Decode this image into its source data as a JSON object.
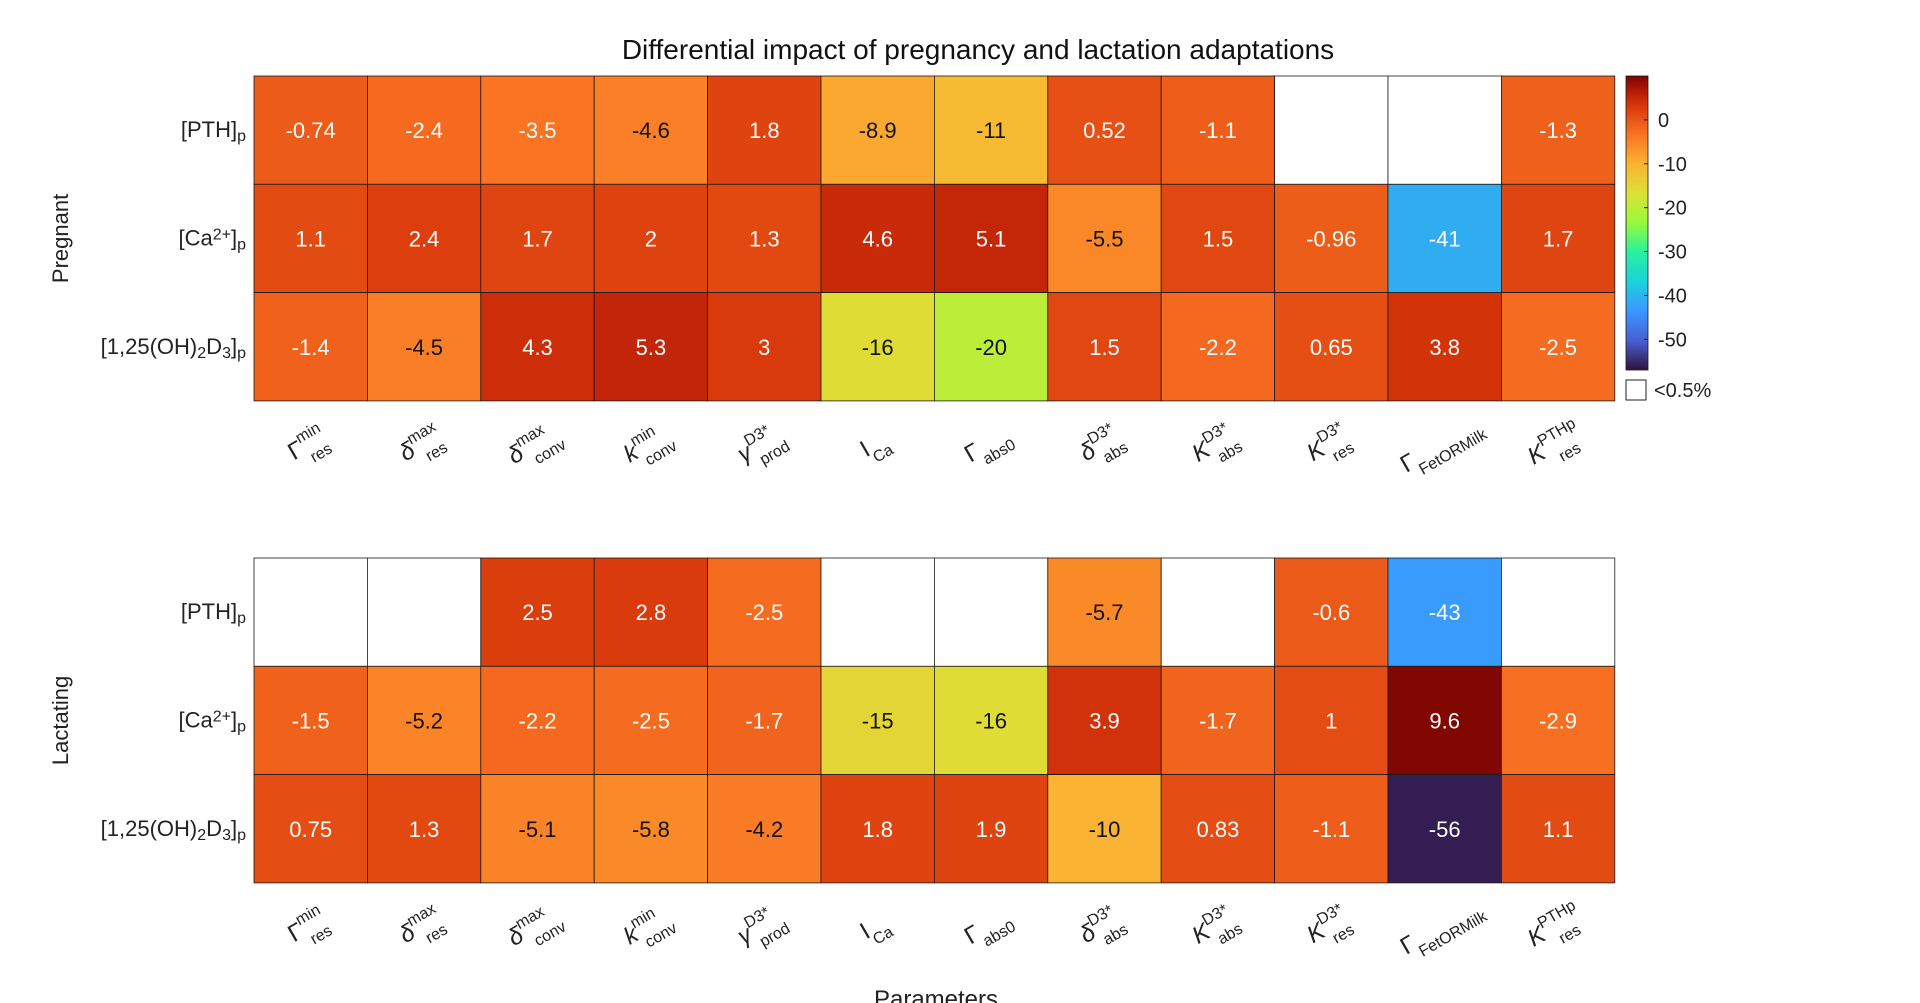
{
  "title": "Differential impact of pregnancy and lactation adaptations",
  "xlabel": "Parameters",
  "legend_note": "<0.5%",
  "chart_data": {
    "type": "heatmap",
    "title": "Differential impact of pregnancy and lactation adaptations",
    "xlabel": "Parameters",
    "columns": [
      {
        "base": "Γ",
        "sup": "min",
        "sub": "res"
      },
      {
        "base": "δ",
        "sup": "max",
        "sub": "res"
      },
      {
        "base": "δ",
        "sup": "max",
        "sub": "conv"
      },
      {
        "base": "k",
        "sup": "min",
        "sub": "conv"
      },
      {
        "base": "γ",
        "sup": "D3*",
        "sub": "prod"
      },
      {
        "base": "I",
        "sup": "",
        "sub": "Ca"
      },
      {
        "base": "Γ",
        "sup": "",
        "sub": "abs0"
      },
      {
        "base": "δ",
        "sup": "D3*",
        "sub": "abs"
      },
      {
        "base": "K",
        "sup": "D3*",
        "sub": "abs"
      },
      {
        "base": "K",
        "sup": "D3*",
        "sub": "res"
      },
      {
        "base": "Γ",
        "sup": "",
        "sub": "FetORMilk"
      },
      {
        "base": "K",
        "sup": "PTHp",
        "sub": "res"
      }
    ],
    "rows": [
      {
        "pre": "[PTH]",
        "sup": "",
        "mid": "",
        "sub": "p"
      },
      {
        "pre": "[Ca",
        "sup": "2+",
        "mid": "]",
        "sub": "p"
      },
      {
        "pre": "[1,25(OH)",
        "sub2": "2",
        "pre2": "D",
        "sub3": "3",
        "mid": "]",
        "sub": "p"
      }
    ],
    "panels": [
      {
        "name": "Pregnant",
        "values": [
          [
            -0.74,
            -2.4,
            -3.5,
            -4.6,
            1.8,
            -8.9,
            -11,
            0.52,
            -1.1,
            null,
            null,
            -1.3
          ],
          [
            1.1,
            2.4,
            1.7,
            2,
            1.3,
            4.6,
            5.1,
            -5.5,
            1.5,
            -0.96,
            -41,
            1.7
          ],
          [
            -1.4,
            -4.5,
            4.3,
            5.3,
            3,
            -16,
            -20,
            1.5,
            -2.2,
            0.65,
            3.8,
            -2.5
          ]
        ]
      },
      {
        "name": "Lactating",
        "values": [
          [
            null,
            null,
            2.5,
            2.8,
            -2.5,
            null,
            null,
            -5.7,
            null,
            -0.6,
            -43,
            null
          ],
          [
            -1.5,
            -5.2,
            -2.2,
            -2.5,
            -1.7,
            -15,
            -16,
            3.9,
            -1.7,
            1,
            9.6,
            -2.9
          ],
          [
            0.75,
            1.3,
            -5.1,
            -5.8,
            -4.2,
            1.8,
            1.9,
            -10,
            0.83,
            -1.1,
            -56,
            1.1
          ]
        ]
      }
    ],
    "colorbar": {
      "range": [
        -57,
        10
      ],
      "ticks": [
        0,
        -10,
        -20,
        -30,
        -40,
        -50
      ],
      "colormap": "turbo",
      "low_color": "#30123b",
      "high_color": "#7a0403"
    }
  }
}
